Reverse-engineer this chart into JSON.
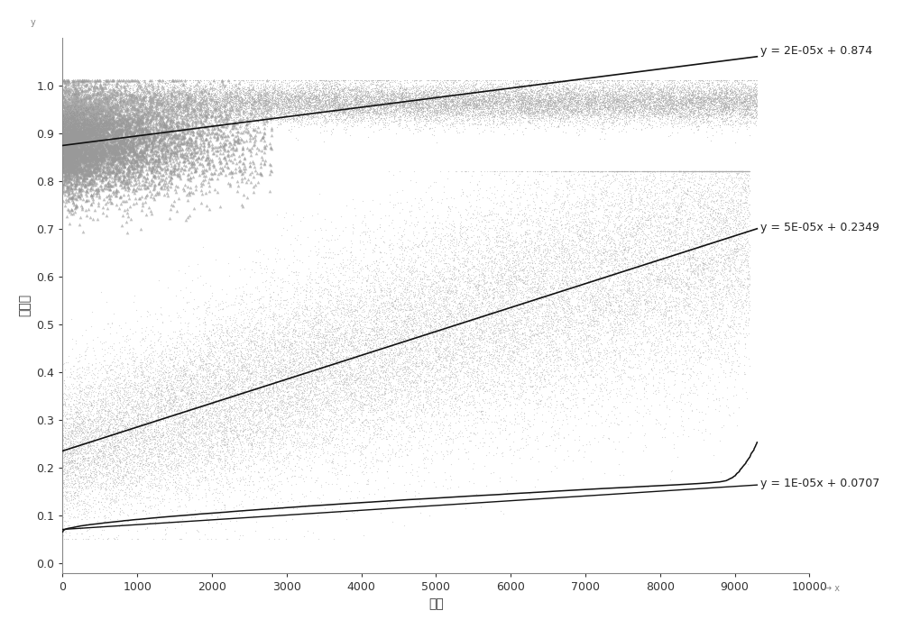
{
  "title": "",
  "xlabel": "编号",
  "ylabel": "差异値",
  "xlim": [
    0,
    10000
  ],
  "ylim": [
    -0.02,
    1.1
  ],
  "xticks": [
    0,
    1000,
    2000,
    3000,
    4000,
    5000,
    6000,
    7000,
    8000,
    9000,
    10000
  ],
  "yticks": [
    0,
    0.1,
    0.2,
    0.3,
    0.4,
    0.5,
    0.6,
    0.7,
    0.8,
    0.9,
    1
  ],
  "line1_slope": 2e-05,
  "line1_intercept": 0.874,
  "line1_label": "y = 2E-05x + 0.874",
  "line2_slope": 5e-05,
  "line2_intercept": 0.2349,
  "line2_label": "y = 5E-05x + 0.2349",
  "line3_slope": 1e-05,
  "line3_intercept": 0.0707,
  "line3_label": "y = 1E-05x + 0.0707",
  "scatter_color_tri": "#999999",
  "scatter_color_dot": "#aaaaaa",
  "scatter_color_mid": "#aaaaaa",
  "line_color": "#111111",
  "curve_color": "#111111",
  "bg_color": "#ffffff",
  "fontsize_label": 10,
  "fontsize_tick": 9,
  "fontsize_annot": 9
}
